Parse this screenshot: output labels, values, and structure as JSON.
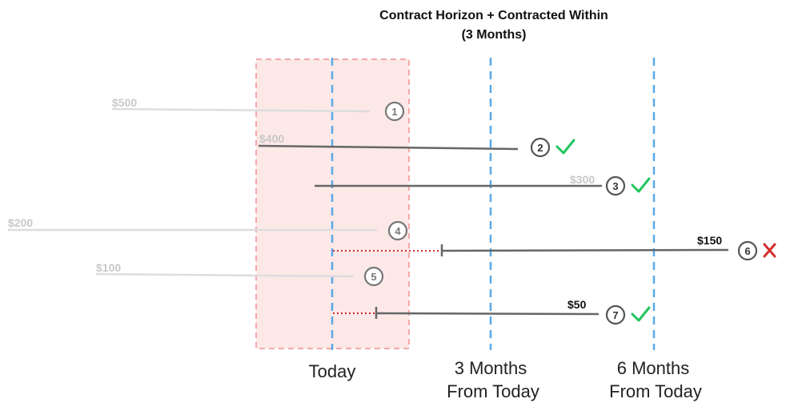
{
  "title": {
    "line1": "Contract Horizon + Contracted Within",
    "line2": "(3 Months)"
  },
  "markers": [
    {
      "id": "today",
      "line1": "Today",
      "line2": ""
    },
    {
      "id": "3m",
      "line1": "3 Months",
      "line2": "From Today"
    },
    {
      "id": "6m",
      "line1": "6 Months",
      "line2": "From Today"
    }
  ],
  "contracts": [
    {
      "number": "1",
      "amount": "$500",
      "status": "excluded"
    },
    {
      "number": "2",
      "amount": "$400",
      "status": "included"
    },
    {
      "number": "3",
      "amount": "$300",
      "status": "included"
    },
    {
      "number": "4",
      "amount": "$200",
      "status": "excluded"
    },
    {
      "number": "5",
      "amount": "$100",
      "status": "excluded"
    },
    {
      "number": "6",
      "amount": "$150",
      "status": "rejected"
    },
    {
      "number": "7",
      "amount": "$50",
      "status": "included"
    }
  ],
  "icons": {
    "included": "checkmark-icon",
    "rejected": "cross-icon"
  },
  "colors": {
    "window_fill": "#fde8e8",
    "window_border": "#f4a9a9",
    "marker_line": "#5aa9e6",
    "active_line": "#666666",
    "faded_line": "#dddddd",
    "faded_text": "#c8c8c8",
    "check": "#22c55e",
    "cross": "#d32f2f",
    "dotted": "#d32f2f"
  }
}
